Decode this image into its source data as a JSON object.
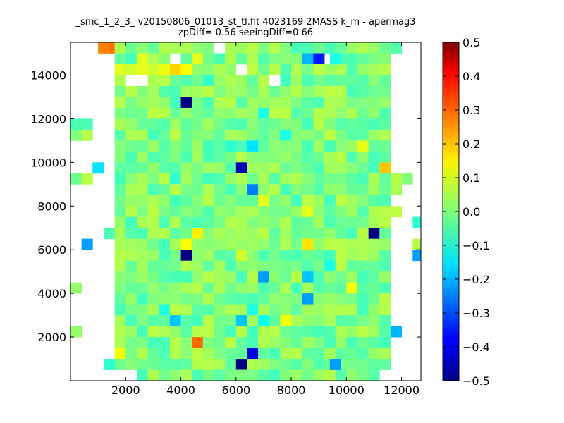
{
  "chart_data": {
    "type": "heatmap",
    "title": "_smc_1_2_3_ v20150806_01013_st_tl.fit 4023169 2MASS k_m - apermag3",
    "subtitle": "zpDiff= 0.56 seeingDiff=0.66",
    "xlabel": "",
    "ylabel": "",
    "xlim": [
      0,
      12700
    ],
    "ylim": [
      0,
      15500
    ],
    "xticks": [
      2000,
      4000,
      6000,
      8000,
      10000,
      12000
    ],
    "yticks": [
      2000,
      4000,
      6000,
      8000,
      10000,
      12000,
      14000
    ],
    "colorbar": {
      "range": [
        -0.5,
        0.5
      ],
      "ticks": [
        0.5,
        0.4,
        0.3,
        0.2,
        0.1,
        0.0,
        -0.1,
        -0.2,
        -0.3,
        -0.4,
        -0.5
      ],
      "tick_labels": [
        "0.5",
        "0.4",
        "0.3",
        "0.2",
        "0.1",
        "0.0",
        "−0.1",
        "−0.2",
        "−0.3",
        "−0.4",
        "−0.5"
      ],
      "colormap": "jet"
    },
    "grid": false,
    "cell_size": [
      400,
      500
    ],
    "x_start": 0,
    "y_start": 0,
    "rows_top_to_bottom": [
      ".  .  .  m  g  g  g  g  g  g  g  g  g  .  g  g  g  g  g  g  g  g  g  g  g  g  g  g  g  g  .  .",
      ".  .  .  .  g  g  a  a  a  .  g  a  g  g  g  g  g  g  g  g  a  g  g  .  g  g  g  g  g  .  .  .",
      ".  .  .  .  a  a  g  a  a  y  y  g  g  g  g  .  g  g  g  g  a  a  g  g  g  g  g  g  g  .  .  .",
      ".  .  .  .  g  .  .  g  g  g  g  g  c  g  g  g  g  g  .  g  a  g  g  g  g  g  g  g  g  .  .  .",
      ".  .  .  .  g  g  g  g  g  g  g  g  g  g  g  g  g  g  g  g  g  g  g  g  g  g  g  g  g  .  .  .",
      ".  .  .  .  g  g  g  g  g  g  g  g  g  g  g  g  g  g  g  g  g  g  g  g  g  g  g  g  g  .  .  .",
      ".  .  .  .  g  g  g  g  g  g  g  g  g  g  g  g  g  g  g  g  g  g  g  g  g  g  g  g  g  .  .  .",
      ".  .  .  .  g  g  g  g  g  g  g  g  g  g  g  g  g  g  g  g  g  g  g  g  g  g  g  g  g  .  .  .",
      "g  g  .  .  g  g  g  g  g  g  g  g  g  g  g  g  g  g  g  g  g  g  g  g  g  g  g  g  g  .  .  .",
      ".  .  .  .  g  g  g  g  g  g  g  g  g  g  g  g  g  g  g  g  g  g  g  g  g  g  g  g  g  .  .  .",
      ".  .  .  .  g  g  g  g  g  g  g  g  g  g  g  g  g  g  g  g  g  g  g  g  g  g  g  g  g  .  .  .",
      ".  .  .  .  g  g  g  g  g  g  g  g  g  g  g  g  g  g  g  g  g  g  g  g  g  g  g  g  g  .  .  .",
      "g  g  .  .  g  g  g  g  g  g  g  g  g  g  g  g  g  g  g  g  g  g  g  g  g  g  g  g  g  g  g  .",
      ".  .  .  .  g  g  g  g  g  g  g  g  g  g  g  g  g  g  g  g  g  g  g  g  g  g  g  g  g  g  .  .",
      ".  .  .  .  g  g  g  g  g  g  g  g  g  g  g  g  g  g  g  g  g  g  g  g  g  g  g  g  g  .  .  .",
      ".  .  .  .  g  g  g  g  g  g  g  g  g  g  g  g  g  g  g  g  g  g  g  g  g  g  g  g  g  .  .  .",
      ".  .  .  .  g  g  g  g  g  g  g  g  g  g  g  g  g  g  g  g  g  g  g  g  g  g  g  g  g  .  .  .",
      ".  .  .  g  g  g  g  g  g  g  g  g  g  g  g  g  g  g  g  g  g  g  g  g  g  g  g  g  g  .  .  .",
      ".  .  .  .  g  g  g  g  g  g  g  g  g  g  g  g  g  g  g  g  g  g  g  g  g  g  g  g  g  .  .  g",
      ".  .  .  .  g  g  g  g  g  g  g  g  g  g  g  g  g  g  g  g  g  g  g  g  g  g  g  g  g  .  .  .",
      ".  .  .  .  g  g  g  g  g  g  g  g  g  g  g  g  g  g  g  g  g  g  g  g  g  g  g  g  g  .  .  .",
      ".  .  .  .  g  g  g  g  g  g  g  g  g  g  g  g  g  g  g  g  g  g  g  g  g  g  g  g  g  .  .  .",
      ".  .  .  .  g  g  g  g  g  g  g  g  g  g  g  g  g  g  g  g  g  g  g  g  g  g  g  g  g  .  .  .",
      ".  .  .  .  g  g  g  g  g  g  g  g  g  g  g  g  g  g  g  g  g  g  g  g  g  g  g  g  g  .  .  .",
      ".  .  .  .  g  g  g  g  g  g  g  g  g  g  g  g  g  g  g  g  g  g  g  g  g  g  g  g  g  .  .  .",
      ".  .  .  .  g  g  g  g  g  g  g  g  g  g  g  g  g  g  g  g  g  g  g  g  g  g  g  g  g  .  .  .",
      "g  .  .  .  g  g  g  g  g  g  g  g  g  g  g  g  g  g  g  g  g  g  g  g  g  g  g  g  g  .  .  .",
      ".  .  .  .  g  g  g  g  g  g  g  g  g  g  g  g  g  g  g  g  g  g  g  g  g  g  g  g  g  .  .  .",
      ".  .  .  .  g  g  g  g  g  g  g  g  g  g  g  g  g  g  g  g  g  g  g  g  g  g  g  g  g  .  .  .",
      ".  .  .  .  g  g  g  g  g  g  g  g  g  g  g  g  g  g  g  g  g  g  g  g  g  g  g  g  g  .  .  .",
      ".  .  .  .  .  .  g  g  g  g  g  g  g  g  g  g  g  g  g  g  g  g  g  g  g  g  g  g  .  .  .  ."
    ],
    "cell_key": {
      ".": null,
      "g": 0.0,
      "a": 0.05,
      "y": 0.12,
      "c": -0.1,
      "m": 0.25
    },
    "special_cells": [
      {
        "x": 1200,
        "y": 15250,
        "value": 0.25
      },
      {
        "x": 9000,
        "y": 14750,
        "value": -0.35
      },
      {
        "x": 8600,
        "y": 14750,
        "value": -0.2
      },
      {
        "x": 9600,
        "y": 14750,
        "value": -0.1
      },
      {
        "x": 4200,
        "y": 12750,
        "value": -0.5
      },
      {
        "x": 200,
        "y": 11750,
        "value": -0.05
      },
      {
        "x": 600,
        "y": 11750,
        "value": -0.05
      },
      {
        "x": 7000,
        "y": 12250,
        "value": -0.1
      },
      {
        "x": 7800,
        "y": 11250,
        "value": -0.1
      },
      {
        "x": 6600,
        "y": 10750,
        "value": -0.15
      },
      {
        "x": 5800,
        "y": 10750,
        "value": -0.08
      },
      {
        "x": 6200,
        "y": 9750,
        "value": -0.45
      },
      {
        "x": 1000,
        "y": 9750,
        "value": -0.15
      },
      {
        "x": 11400,
        "y": 9750,
        "value": 0.18
      },
      {
        "x": 10600,
        "y": 10750,
        "value": 0.1
      },
      {
        "x": 3800,
        "y": 9250,
        "value": -0.08
      },
      {
        "x": 5000,
        "y": 9250,
        "value": -0.06
      },
      {
        "x": 6600,
        "y": 8750,
        "value": -0.25
      },
      {
        "x": 7000,
        "y": 8250,
        "value": 0.1
      },
      {
        "x": 8600,
        "y": 7750,
        "value": 0.1
      },
      {
        "x": 11000,
        "y": 6750,
        "value": -0.5
      },
      {
        "x": 12600,
        "y": 7250,
        "value": -0.08
      },
      {
        "x": 4600,
        "y": 6750,
        "value": 0.14
      },
      {
        "x": 4200,
        "y": 6250,
        "value": 0.12
      },
      {
        "x": 8600,
        "y": 6250,
        "value": 0.15
      },
      {
        "x": 600,
        "y": 6250,
        "value": -0.22
      },
      {
        "x": 4200,
        "y": 5750,
        "value": -0.5
      },
      {
        "x": 12600,
        "y": 5750,
        "value": -0.22
      },
      {
        "x": 9400,
        "y": 5250,
        "value": -0.1
      },
      {
        "x": 6200,
        "y": 5750,
        "value": 0.08
      },
      {
        "x": 7000,
        "y": 4750,
        "value": -0.22
      },
      {
        "x": 8600,
        "y": 4750,
        "value": -0.18
      },
      {
        "x": 10200,
        "y": 4250,
        "value": 0.12
      },
      {
        "x": 8600,
        "y": 3750,
        "value": -0.22
      },
      {
        "x": 3400,
        "y": 3250,
        "value": -0.1
      },
      {
        "x": 6600,
        "y": 3250,
        "value": -0.1
      },
      {
        "x": 3800,
        "y": 2750,
        "value": -0.18
      },
      {
        "x": 6200,
        "y": 2750,
        "value": -0.18
      },
      {
        "x": 7000,
        "y": 2750,
        "value": -0.12
      },
      {
        "x": 11800,
        "y": 2250,
        "value": -0.2
      },
      {
        "x": 4600,
        "y": 1750,
        "value": 0.27
      },
      {
        "x": 1800,
        "y": 1250,
        "value": 0.12
      },
      {
        "x": 6600,
        "y": 1250,
        "value": -0.4
      },
      {
        "x": 6200,
        "y": 750,
        "value": -0.5
      },
      {
        "x": 9600,
        "y": 750,
        "value": -0.22
      },
      {
        "x": 1400,
        "y": 750,
        "value": -0.08
      },
      {
        "x": 200,
        "y": 2250,
        "value": 0.02
      },
      {
        "x": 200,
        "y": 4250,
        "value": 0.02
      },
      {
        "x": 7800,
        "y": 2750,
        "value": 0.12
      },
      {
        "x": 2600,
        "y": 14250,
        "value": 0.1
      },
      {
        "x": 2200,
        "y": 14250,
        "value": 0.08
      },
      {
        "x": 11800,
        "y": 7750,
        "value": 0.06
      }
    ]
  }
}
